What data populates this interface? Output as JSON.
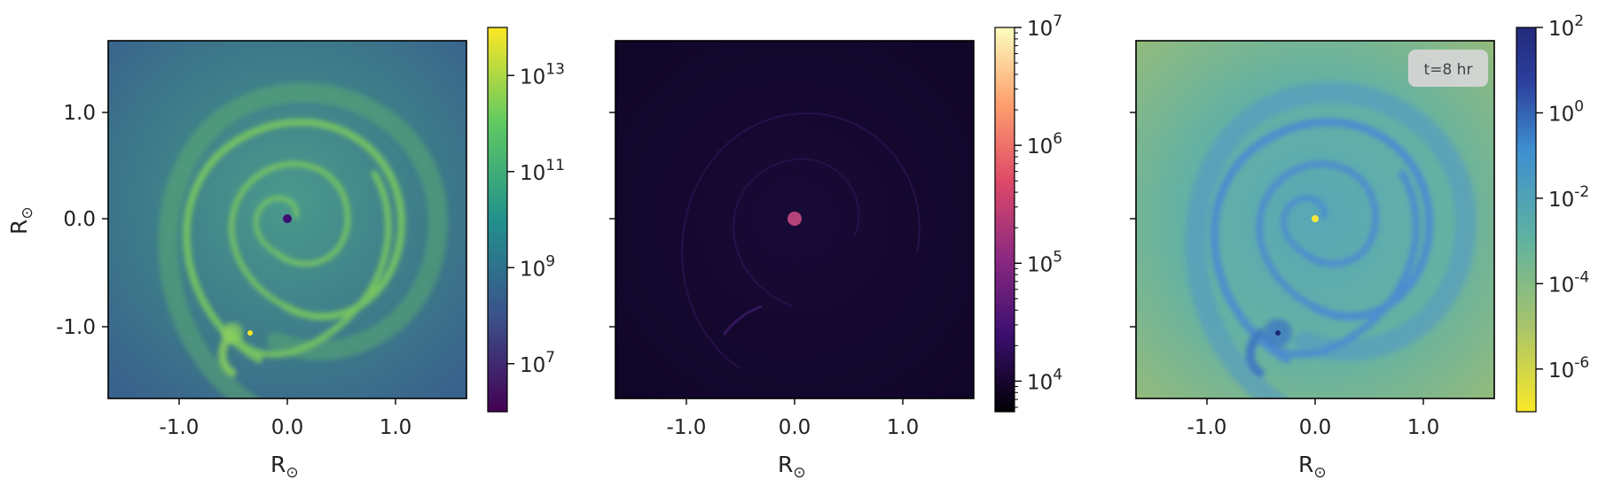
{
  "chart_data": [
    {
      "type": "heatmap",
      "xlabel": "R",
      "xlabel_sub": "⊙",
      "ylabel": "R",
      "ylabel_sub": "⊙",
      "xlim": [
        -1.65,
        1.65
      ],
      "ylim": [
        -1.65,
        1.65
      ],
      "xticks": [
        -1.0,
        0.0,
        1.0
      ],
      "xtick_labels": [
        "-1.0",
        "0.0",
        "1.0"
      ],
      "yticks": [
        1.0,
        0.0,
        -1.0
      ],
      "ytick_labels": [
        "1.0",
        "0.0",
        "-1.0"
      ],
      "colormap": "viridis",
      "colormap_colors": [
        "#440154",
        "#3b528b",
        "#21918c",
        "#5ec962",
        "#fde725"
      ],
      "colorbar": {
        "scale": "log",
        "range": [
          1000000,
          100000000000000
        ],
        "ticks": [
          10000000,
          1000000000,
          100000000000,
          10000000000000
        ],
        "tick_base": [
          "10",
          "10",
          "10",
          "10"
        ],
        "tick_exp": [
          "7",
          "9",
          "11",
          "13"
        ]
      },
      "features": {
        "central_point_color": "#3b0f70",
        "companion_point_color": "#fde725",
        "background_color": "#3f7f8e",
        "spiral_color": "#7fce5c"
      }
    },
    {
      "type": "heatmap",
      "xlabel": "R",
      "xlabel_sub": "⊙",
      "xlim": [
        -1.65,
        1.65
      ],
      "ylim": [
        -1.65,
        1.65
      ],
      "xticks": [
        -1.0,
        0.0,
        1.0
      ],
      "xtick_labels": [
        "-1.0",
        "0.0",
        "1.0"
      ],
      "colormap": "magma",
      "colormap_colors": [
        "#000004",
        "#3b0f70",
        "#8c2981",
        "#de4968",
        "#fe9f6d",
        "#fcfdbf"
      ],
      "colorbar": {
        "scale": "log",
        "range": [
          5500,
          10000000
        ],
        "ticks": [
          10000,
          100000,
          1000000,
          10000000
        ],
        "tick_base": [
          "10",
          "10",
          "10",
          "10"
        ],
        "tick_exp": [
          "4",
          "5",
          "6",
          "7"
        ]
      },
      "features": {
        "central_point_color": "#b5437a",
        "background_color": "#12082e"
      }
    },
    {
      "type": "heatmap",
      "xlabel": "R",
      "xlabel_sub": "⊙",
      "xlim": [
        -1.65,
        1.65
      ],
      "ylim": [
        -1.65,
        1.65
      ],
      "xticks": [
        -1.0,
        0.0,
        1.0
      ],
      "xtick_labels": [
        "-1.0",
        "0.0",
        "1.0"
      ],
      "colormap": "viridis_r",
      "colormap_colors": [
        "#f9e828",
        "#a9c46a",
        "#5fb2a0",
        "#3f8fd0",
        "#2c3f9c",
        "#232a7a"
      ],
      "colorbar": {
        "scale": "log",
        "range": [
          1e-07,
          100
        ],
        "ticks": [
          100,
          1,
          0.01,
          0.0001,
          1e-06
        ],
        "tick_base": [
          "10",
          "10",
          "10",
          "10",
          "10"
        ],
        "tick_exp": [
          "2",
          "0",
          "-2",
          "-4",
          "-6"
        ]
      },
      "annotation": "t=8 hr",
      "features": {
        "central_point_color": "#f5e83a",
        "companion_point_color": "#1e2a7a",
        "background_color": "#6bb39a",
        "spiral_color": "#4a87d6"
      }
    }
  ]
}
